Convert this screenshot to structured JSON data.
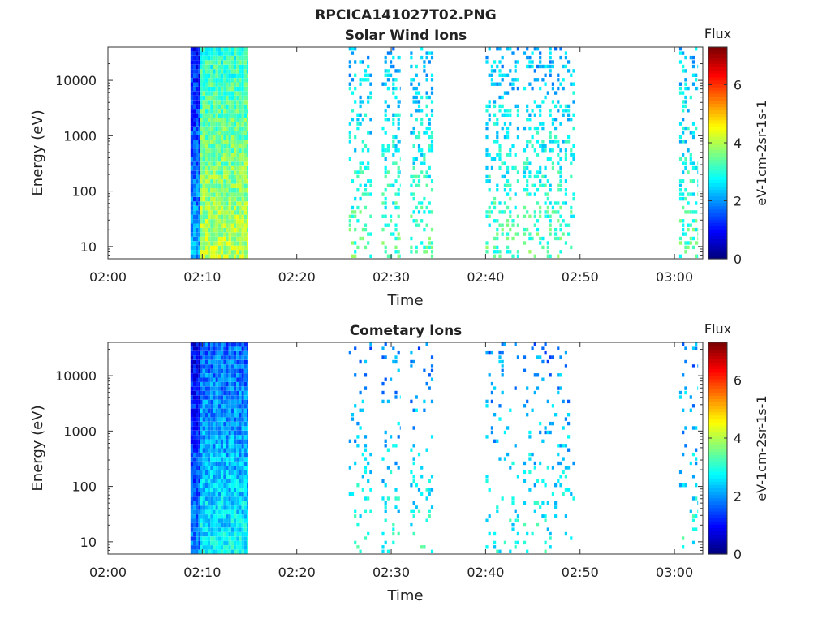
{
  "figure_title": "RPCICA141027T02.PNG",
  "chart_data": [
    {
      "type": "heatmap",
      "title": "Solar Wind Ions",
      "xlabel": "Time",
      "ylabel": "Energy (eV)",
      "yscale": "log",
      "x_ticks": [
        "02:00",
        "02:10",
        "02:20",
        "02:30",
        "02:40",
        "02:50",
        "03:00"
      ],
      "y_ticks": [
        "10",
        "100",
        "1000",
        "10000"
      ],
      "xlim": [
        "02:00",
        "03:03"
      ],
      "ylim": [
        6,
        40000
      ],
      "colorbar": {
        "title": "Flux",
        "label": "eV-1cm-2sr-1s-1",
        "ticks": [
          "0",
          "2",
          "4",
          "6"
        ],
        "range": [
          0,
          7.3
        ]
      },
      "bursts": [
        {
          "start": "02:08:45",
          "end": "02:09:45",
          "emin": 6,
          "emax": 40000,
          "density": 1.0,
          "level": 1.0
        },
        {
          "start": "02:09:45",
          "end": "02:14:50",
          "emin": 6,
          "emax": 40000,
          "density": 1.0,
          "level": 3.0
        },
        {
          "start": "02:25:30",
          "end": "02:28:00",
          "emin": 6,
          "emax": 40000,
          "density": 0.28,
          "level": 2.2
        },
        {
          "start": "02:29:00",
          "end": "02:31:00",
          "emin": 6,
          "emax": 40000,
          "density": 0.3,
          "level": 2.2
        },
        {
          "start": "02:32:00",
          "end": "02:34:30",
          "emin": 6,
          "emax": 40000,
          "density": 0.3,
          "level": 2.2
        },
        {
          "start": "02:40:00",
          "end": "02:43:30",
          "emin": 6,
          "emax": 40000,
          "density": 0.28,
          "level": 2.2
        },
        {
          "start": "02:44:00",
          "end": "02:47:00",
          "emin": 6,
          "emax": 40000,
          "density": 0.3,
          "level": 2.2
        },
        {
          "start": "02:47:00",
          "end": "02:49:30",
          "emin": 6,
          "emax": 40000,
          "density": 0.28,
          "level": 2.2
        },
        {
          "start": "03:00:30",
          "end": "03:02:30",
          "emin": 6,
          "emax": 40000,
          "density": 0.3,
          "level": 2.2
        }
      ]
    },
    {
      "type": "heatmap",
      "title": "Cometary Ions",
      "xlabel": "Time",
      "ylabel": "Energy (eV)",
      "yscale": "log",
      "x_ticks": [
        "02:00",
        "02:10",
        "02:20",
        "02:30",
        "02:40",
        "02:50",
        "03:00"
      ],
      "y_ticks": [
        "10",
        "100",
        "1000",
        "10000"
      ],
      "xlim": [
        "02:00",
        "03:03"
      ],
      "ylim": [
        6,
        40000
      ],
      "colorbar": {
        "title": "Flux",
        "label": "eV-1cm-2sr-1s-1",
        "ticks": [
          "0",
          "2",
          "4",
          "6"
        ],
        "range": [
          0,
          7.3
        ]
      },
      "bursts": [
        {
          "start": "02:08:45",
          "end": "02:09:45",
          "emin": 6,
          "emax": 40000,
          "density": 1.0,
          "level": 0.8
        },
        {
          "start": "02:09:45",
          "end": "02:14:50",
          "emin": 6,
          "emax": 40000,
          "density": 1.0,
          "level": 1.6
        },
        {
          "start": "02:25:30",
          "end": "02:28:00",
          "emin": 6,
          "emax": 40000,
          "density": 0.12,
          "level": 1.8
        },
        {
          "start": "02:29:00",
          "end": "02:31:00",
          "emin": 6,
          "emax": 40000,
          "density": 0.14,
          "level": 1.8
        },
        {
          "start": "02:32:00",
          "end": "02:34:30",
          "emin": 6,
          "emax": 40000,
          "density": 0.14,
          "level": 1.8
        },
        {
          "start": "02:40:00",
          "end": "02:43:30",
          "emin": 6,
          "emax": 40000,
          "density": 0.12,
          "level": 1.8
        },
        {
          "start": "02:44:00",
          "end": "02:47:00",
          "emin": 6,
          "emax": 40000,
          "density": 0.13,
          "level": 1.8
        },
        {
          "start": "02:47:00",
          "end": "02:49:30",
          "emin": 6,
          "emax": 40000,
          "density": 0.12,
          "level": 1.8
        },
        {
          "start": "03:00:30",
          "end": "03:02:30",
          "emin": 6,
          "emax": 40000,
          "density": 0.12,
          "level": 1.8
        }
      ]
    }
  ]
}
